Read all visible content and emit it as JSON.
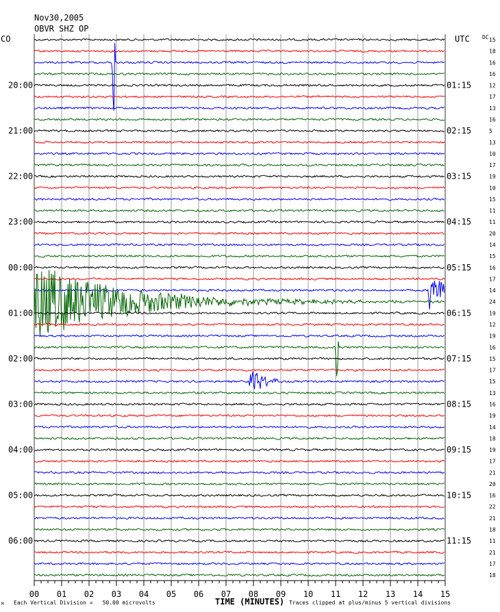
{
  "header": {
    "date": "Nov30,2005",
    "station": "OBVR SHZ OP",
    "left_zone": "CO",
    "right_zone": "UTC",
    "dc_label": "DC"
  },
  "chart_data": {
    "type": "line",
    "title": "Nov30,2005 OBVR SHZ OP",
    "xlabel": "TIME (MINUTES)",
    "x_ticks": [
      "00",
      "01",
      "02",
      "03",
      "04",
      "05",
      "06",
      "07",
      "08",
      "09",
      "10",
      "11",
      "12",
      "13",
      "14",
      "15"
    ],
    "xlim": [
      0,
      15
    ],
    "trace_colors": [
      "#000000",
      "#ff0000",
      "#0000ff",
      "#006400"
    ],
    "left_time_labels": [
      "20:00",
      "21:00",
      "22:00",
      "23:00",
      "00:00",
      "01:00",
      "02:00",
      "03:00",
      "04:00",
      "05:00",
      "06:00"
    ],
    "right_time_labels": [
      "01:15",
      "02:15",
      "03:15",
      "04:15",
      "05:15",
      "06:15",
      "07:15",
      "08:15",
      "09:15",
      "10:15",
      "11:15"
    ],
    "label_row_start": 4,
    "dc_values": [
      "15",
      "18",
      "16",
      "16",
      "12",
      "17",
      "13",
      "16",
      "5",
      "13",
      "10",
      "17",
      "19",
      "10",
      "15",
      "11",
      "11",
      "20",
      "14",
      "15",
      "16",
      "17",
      "14",
      "24",
      "19",
      "12",
      "19",
      "16",
      "15",
      "17",
      "15",
      "13",
      "16",
      "19",
      "14",
      "18",
      "19",
      "17",
      "21",
      "20",
      "16",
      "22",
      "21",
      "18",
      "11",
      "21",
      "17",
      "18"
    ],
    "events": [
      {
        "row": 2,
        "minute": 2.9,
        "type": "spike",
        "amplitude": 5
      },
      {
        "row": 23,
        "minute": 0,
        "type": "quake",
        "amplitude": 3.5
      },
      {
        "row": 22,
        "minute": 14.4,
        "type": "burst",
        "amplitude": 2
      },
      {
        "row": 27,
        "minute": 11.05,
        "type": "spike",
        "amplitude": 3
      },
      {
        "row": 30,
        "minute": 7.85,
        "type": "burst",
        "amplitude": 1.5
      }
    ],
    "footer_left_prefix": "Each Vertical Division =",
    "footer_left_value": "50.00 microvolts",
    "footer_right": "Traces clipped at plus/minus 5 vertical divisions",
    "logo_mark": "M"
  }
}
